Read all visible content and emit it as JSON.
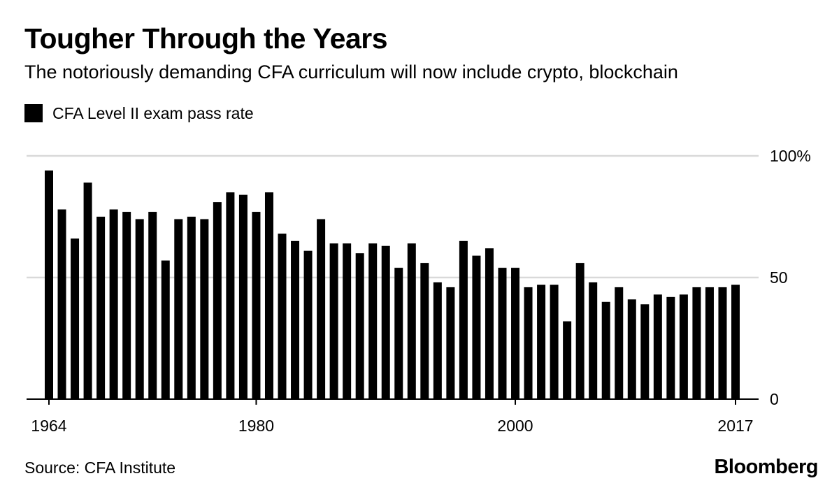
{
  "header": {
    "title": "Tougher Through the Years",
    "subtitle": "The notoriously demanding CFA curriculum will now include crypto, blockchain"
  },
  "legend": {
    "label": "CFA Level II exam pass rate",
    "color": "#000000"
  },
  "footer": {
    "source": "Source: CFA Institute",
    "brand": "Bloomberg"
  },
  "chart_data": {
    "type": "bar",
    "series": [
      {
        "name": "CFA Level II exam pass rate",
        "color": "#000000"
      }
    ],
    "x": [
      1964,
      1965,
      1966,
      1967,
      1968,
      1969,
      1970,
      1971,
      1972,
      1973,
      1974,
      1975,
      1976,
      1977,
      1978,
      1979,
      1980,
      1981,
      1982,
      1983,
      1984,
      1985,
      1986,
      1987,
      1988,
      1989,
      1990,
      1991,
      1992,
      1993,
      1994,
      1995,
      1996,
      1997,
      1998,
      1999,
      2000,
      2001,
      2002,
      2003,
      2004,
      2005,
      2006,
      2007,
      2008,
      2009,
      2010,
      2011,
      2012,
      2013,
      2014,
      2015,
      2016,
      2017
    ],
    "values": [
      94,
      78,
      66,
      89,
      75,
      78,
      77,
      74,
      77,
      57,
      74,
      75,
      74,
      81,
      85,
      84,
      77,
      85,
      68,
      65,
      61,
      74,
      64,
      64,
      60,
      64,
      63,
      54,
      64,
      56,
      48,
      46,
      65,
      59,
      62,
      54,
      54,
      46,
      47,
      47,
      32,
      56,
      48,
      40,
      46,
      41,
      39,
      43,
      42,
      43,
      46,
      46,
      46,
      47
    ],
    "x_tick_labels": [
      "1964",
      "1980",
      "2000",
      "2017"
    ],
    "y_tick_labels": [
      "100%",
      "50",
      "0"
    ],
    "y_ticks": [
      100,
      50,
      0
    ],
    "ylim": [
      0,
      100
    ],
    "grid": true,
    "y_axis_side": "right",
    "legend_position": "top-left"
  }
}
